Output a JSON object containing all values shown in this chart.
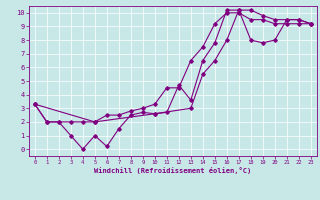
{
  "title": "",
  "xlabel": "Windchill (Refroidissement éolien,°C)",
  "ylabel": "",
  "bg_color": "#c8e8e8",
  "line_color": "#800080",
  "xlim": [
    -0.5,
    23.5
  ],
  "ylim": [
    -0.5,
    10.5
  ],
  "xticks": [
    0,
    1,
    2,
    3,
    4,
    5,
    6,
    7,
    8,
    9,
    10,
    11,
    12,
    13,
    14,
    15,
    16,
    17,
    18,
    19,
    20,
    21,
    22,
    23
  ],
  "yticks": [
    0,
    1,
    2,
    3,
    4,
    5,
    6,
    7,
    8,
    9,
    10
  ],
  "line1_x": [
    0,
    1,
    2,
    3,
    4,
    5,
    6,
    7,
    8,
    9,
    10,
    11,
    12,
    13,
    14,
    15,
    16,
    17,
    18,
    19,
    20,
    21,
    22,
    23
  ],
  "line1_y": [
    3.3,
    2.0,
    2.0,
    1.0,
    0.0,
    1.0,
    0.2,
    1.5,
    2.5,
    2.7,
    2.6,
    2.7,
    4.7,
    3.6,
    6.5,
    7.8,
    10.2,
    10.2,
    10.2,
    9.8,
    9.5,
    9.5,
    9.5,
    9.2
  ],
  "line2_x": [
    0,
    1,
    2,
    3,
    4,
    5,
    6,
    7,
    8,
    9,
    10,
    11,
    12,
    13,
    14,
    15,
    16,
    17,
    18,
    19,
    20,
    21,
    22,
    23
  ],
  "line2_y": [
    3.3,
    2.0,
    2.0,
    2.0,
    2.0,
    2.0,
    2.5,
    2.5,
    2.8,
    3.0,
    3.3,
    4.5,
    4.5,
    6.5,
    7.5,
    9.2,
    10.0,
    10.0,
    9.5,
    9.5,
    9.2,
    9.2,
    9.2,
    9.2
  ],
  "line3_x": [
    0,
    5,
    10,
    13,
    14,
    15,
    16,
    17,
    18,
    19,
    20,
    21,
    22,
    23
  ],
  "line3_y": [
    3.3,
    2.0,
    2.6,
    3.0,
    5.5,
    6.5,
    8.0,
    10.2,
    8.0,
    7.8,
    8.0,
    9.5,
    9.5,
    9.2
  ]
}
